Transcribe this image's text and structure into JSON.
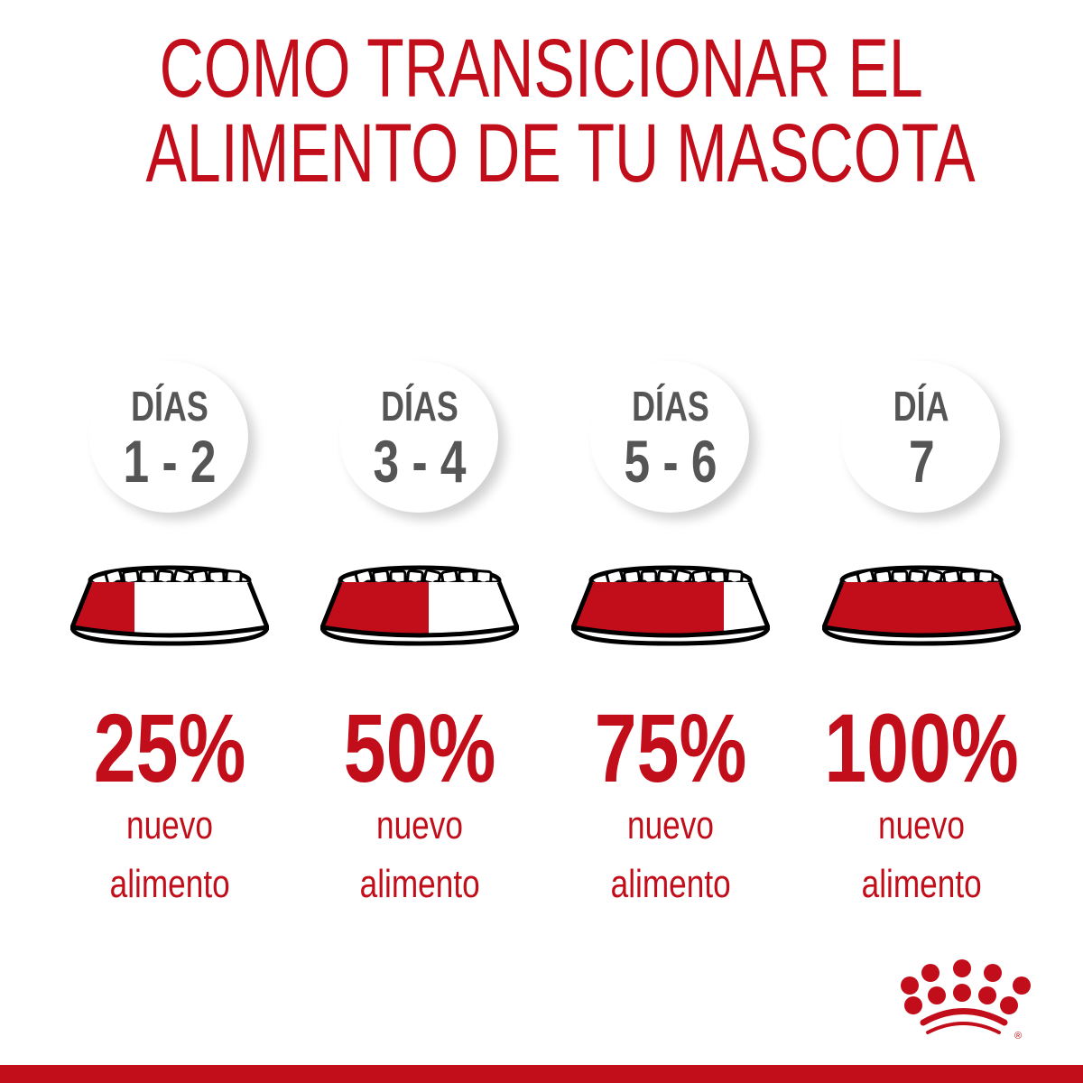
{
  "title": {
    "line1": "COMO TRANSICIONAR EL",
    "line2": "ALIMENTO DE TU MASCOTA"
  },
  "colors": {
    "brand_red": "#c20e1a",
    "day_text": "#555555"
  },
  "steps": [
    {
      "label": "DÍAS",
      "days": "1 - 2",
      "percent": "25%",
      "fraction": 0.25,
      "sub1": "nuevo",
      "sub2": "alimento"
    },
    {
      "label": "DÍAS",
      "days": "3 - 4",
      "percent": "50%",
      "fraction": 0.5,
      "sub1": "nuevo",
      "sub2": "alimento"
    },
    {
      "label": "DÍAS",
      "days": "5 - 6",
      "percent": "75%",
      "fraction": 0.75,
      "sub1": "nuevo",
      "sub2": "alimento"
    },
    {
      "label": "DÍA",
      "days": "7",
      "percent": "100%",
      "fraction": 1.0,
      "sub1": "nuevo",
      "sub2": "alimento"
    }
  ],
  "logo": {
    "name": "Royal Canin crown logo",
    "mark": "®"
  }
}
